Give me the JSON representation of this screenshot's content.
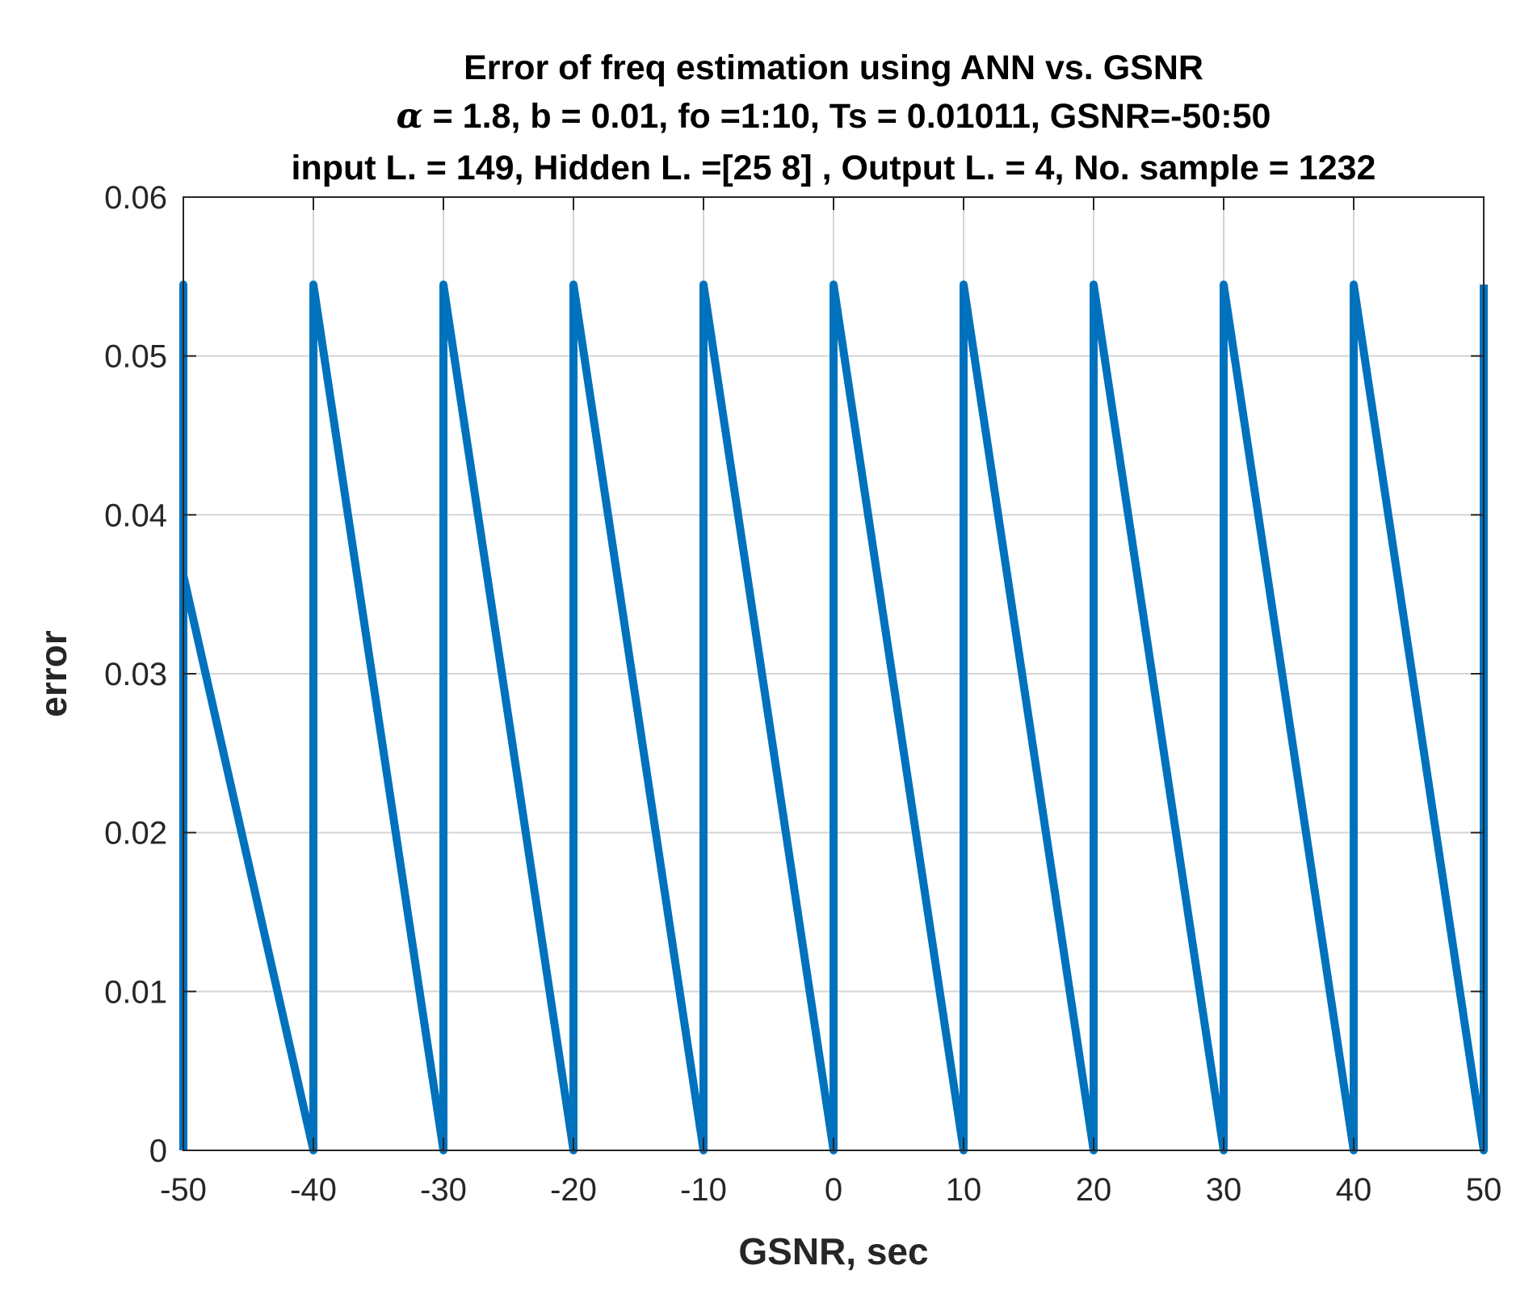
{
  "chart_data": {
    "type": "line",
    "title_lines": [
      "Error of freq estimation using ANN vs. GSNR",
      " = 1.8, b = 0.01,  fo =1:10,  Ts = 0.01011,  GSNR=-50:50",
      "input L. = 149,  Hidden L. =[25 8] ,  Output L. = 4,  No. sample = 1232"
    ],
    "title_symbol": "α",
    "xlabel": "GSNR, sec",
    "ylabel": "error",
    "xlim": [
      -50,
      50
    ],
    "ylim": [
      0,
      0.06
    ],
    "xticks": [
      -50,
      -40,
      -30,
      -20,
      -10,
      0,
      10,
      20,
      30,
      40,
      50
    ],
    "xtick_labels": [
      "-50",
      "-40",
      "-30",
      "-20",
      "-10",
      "0",
      "10",
      "20",
      "30",
      "40",
      "50"
    ],
    "yticks": [
      0,
      0.01,
      0.02,
      0.03,
      0.04,
      0.05,
      0.06
    ],
    "ytick_labels": [
      "0",
      "0.01",
      "0.02",
      "0.03",
      "0.04",
      "0.05",
      "0.06"
    ],
    "grid": true,
    "series": [
      {
        "name": "error",
        "color": "#0072BD",
        "x": [
          -50,
          -50,
          -50,
          -40,
          -40,
          -40,
          -30,
          -30,
          -30,
          -20,
          -20,
          -20,
          -10,
          -10,
          -10,
          0,
          0,
          0,
          10,
          10,
          10,
          20,
          20,
          20,
          30,
          30,
          30,
          40,
          40,
          40,
          50,
          50
        ],
        "y": [
          0,
          0.0545,
          0.0362,
          0,
          0.0545,
          0.0545,
          0,
          0.0545,
          0.0545,
          0,
          0.0545,
          0.0545,
          0,
          0.0545,
          0.0545,
          0,
          0.0545,
          0.0545,
          0,
          0.0545,
          0.0545,
          0,
          0.0545,
          0.0545,
          0,
          0.0545,
          0.0545,
          0,
          0.0545,
          0.0545,
          0,
          0.0545
        ]
      }
    ]
  }
}
